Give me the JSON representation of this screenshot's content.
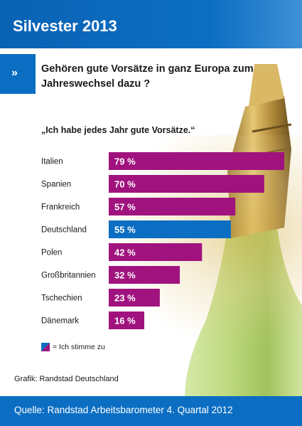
{
  "header": {
    "title": "Silvester 2013"
  },
  "subhead": {
    "marker": "»",
    "text": "Gehören gute Vorsätze in ganz Europa zum Jahreswechsel dazu ?"
  },
  "quote": "„Ich habe jedes Jahr gute Vorsätze.“",
  "colors": {
    "brand_blue": "#0c6ec2",
    "bar_purple": "#a0137e",
    "highlight_blue": "#0c6ec2"
  },
  "chart_data": {
    "type": "bar",
    "orientation": "horizontal",
    "categories": [
      "Italien",
      "Spanien",
      "Frankreich",
      "Deutschland",
      "Polen",
      "Großbritannien",
      "Tschechien",
      "Dänemark"
    ],
    "values": [
      79,
      70,
      57,
      55,
      42,
      32,
      23,
      16
    ],
    "value_labels": [
      "79 %",
      "70 %",
      "57 %",
      "55 %",
      "42 %",
      "32 %",
      "23 %",
      "16 %"
    ],
    "highlight_category": "Deutschland",
    "unit": "%",
    "title": "„Ich habe jedes Jahr gute Vorsätze.“",
    "xlim": [
      0,
      80
    ],
    "grid": false,
    "legend": {
      "entries": [
        "= Ich stimme zu"
      ],
      "placement": "bottom-left"
    }
  },
  "legend": {
    "label": "= Ich stimme zu"
  },
  "credit": "Grafik: Randstad Deutschland",
  "footer": {
    "source": "Quelle: Randstad Arbeitsbarometer 4. Quartal 2012"
  }
}
